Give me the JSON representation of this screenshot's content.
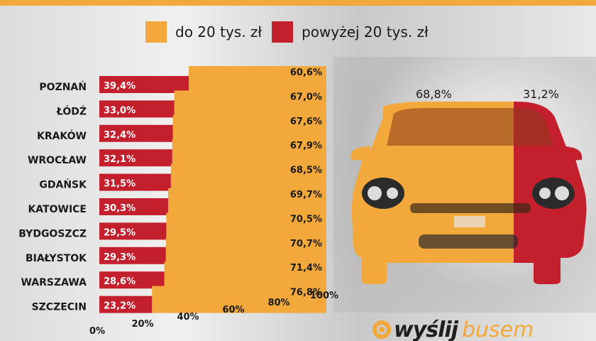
{
  "colors": {
    "below": "#f2a83a",
    "above": "#c41f2c",
    "text": "#1a1a1a"
  },
  "legend": {
    "below_label": "do 20 tys. zł",
    "above_label": "powyżej 20 tys. zł"
  },
  "logo": {
    "part1": "wyślij",
    "part2": "busem"
  },
  "car": {
    "left_label": "68,8%",
    "right_label": "31,2%",
    "below_share": 68.8,
    "above_share": 31.2
  },
  "chart_data": {
    "type": "bar",
    "orientation": "horizontal",
    "stacked": true,
    "title": "",
    "xlabel": "",
    "ylabel": "",
    "xlim": [
      0,
      100
    ],
    "categories": [
      "POZNAŃ",
      "ŁÓDŹ",
      "KRAKÓW",
      "WROCŁAW",
      "GDAŃSK",
      "KATOWICE",
      "BYDGOSZCZ",
      "BIAŁYSTOK",
      "WARSZAWA",
      "SZCZECIN"
    ],
    "series": [
      {
        "name": "powyżej 20 tys. zł",
        "values": [
          39.4,
          33.0,
          32.4,
          32.1,
          31.5,
          30.3,
          29.5,
          29.3,
          28.6,
          23.2
        ],
        "labels": [
          "39,4%",
          "33,0%",
          "32,4%",
          "32,1%",
          "31,5%",
          "30,3%",
          "29,5%",
          "29,3%",
          "28,6%",
          "23,2%"
        ]
      },
      {
        "name": "do 20 tys. zł",
        "values": [
          60.6,
          67.0,
          67.6,
          67.9,
          68.5,
          69.7,
          70.5,
          70.7,
          71.4,
          76.8
        ],
        "labels": [
          "60,6%",
          "67,0%",
          "67,6%",
          "67,9%",
          "68,5%",
          "69,7%",
          "70,5%",
          "70,7%",
          "71,4%",
          "76,8%"
        ]
      }
    ],
    "xticks": [
      "0%",
      "20%",
      "40%",
      "60%",
      "80%",
      "100%"
    ],
    "xtick_values": [
      0,
      20,
      40,
      60,
      80,
      100
    ]
  }
}
